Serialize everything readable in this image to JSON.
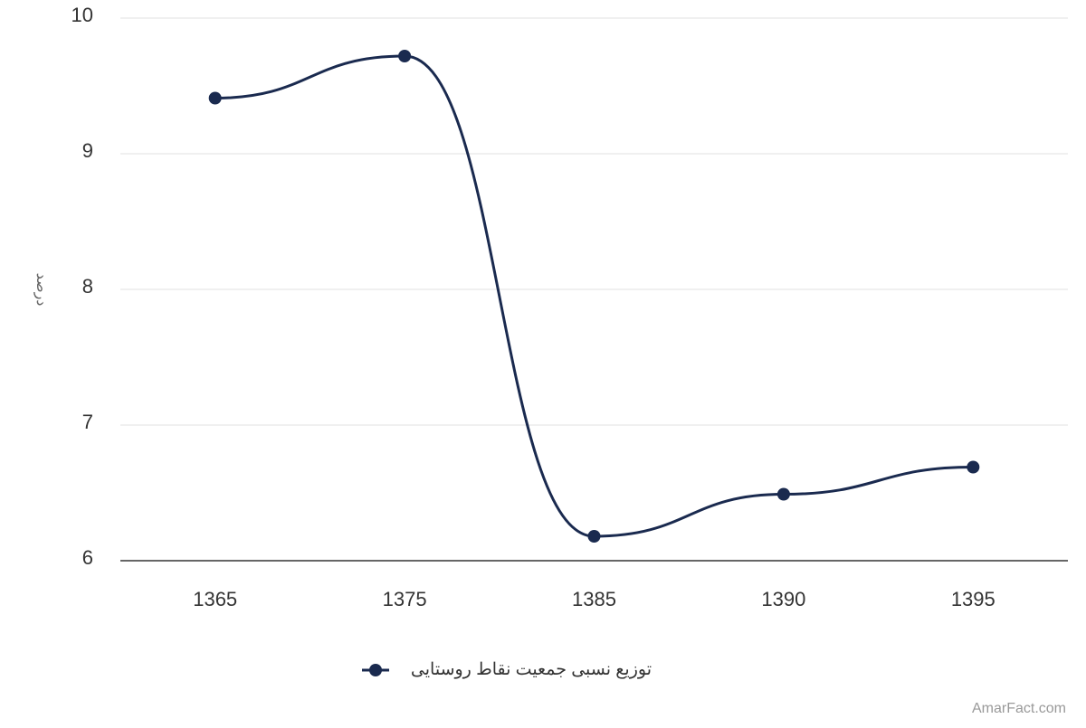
{
  "chart_data": {
    "type": "line",
    "y_label": "درصد",
    "categories": [
      "1365",
      "1375",
      "1385",
      "1390",
      "1395"
    ],
    "series": [
      {
        "name": "توزیع نسبی جمعیت نقاط روستایی",
        "color": "#1a2a4f",
        "values": [
          9.41,
          9.72,
          6.18,
          6.49,
          6.69
        ]
      }
    ],
    "ylim": [
      6,
      10
    ],
    "yticks": [
      6,
      7,
      8,
      9,
      10
    ],
    "grid": true,
    "legend": "bottom",
    "credit": "AmarFact.com"
  }
}
